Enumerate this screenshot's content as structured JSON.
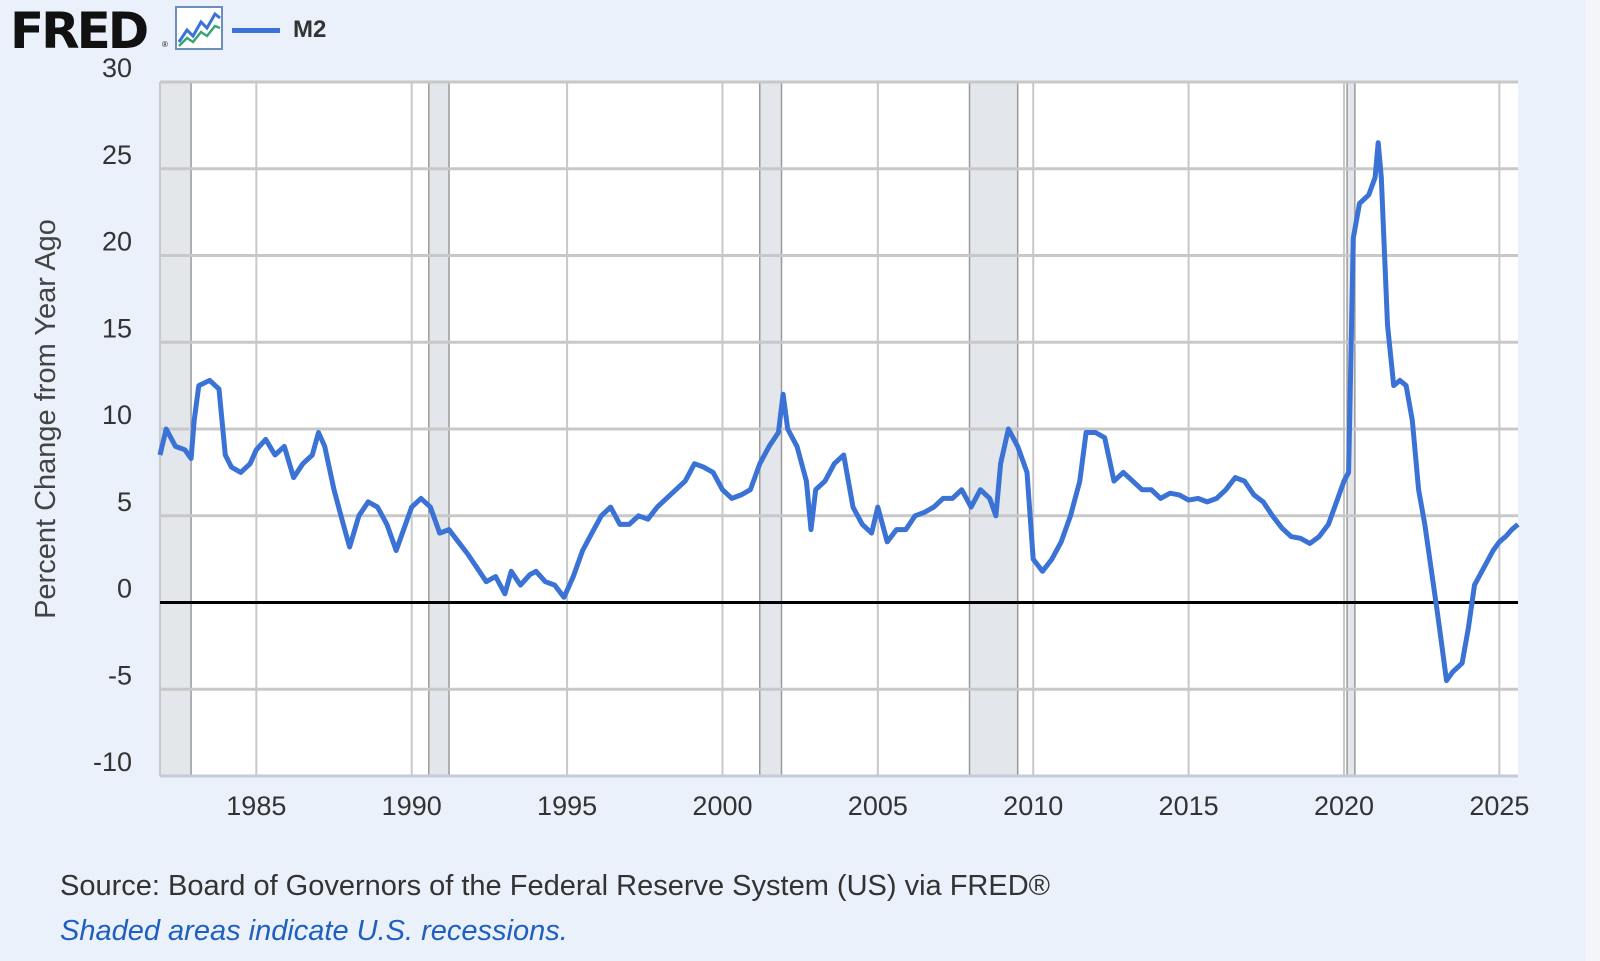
{
  "header": {
    "logo_text": "FRED",
    "logo_mark": "®",
    "icon": "line-chart-icon",
    "legend_label": "M2"
  },
  "colors": {
    "series": "#3a72d6",
    "recession_shade": "#e3e6ea",
    "grid": "#c8c8c8",
    "zero_line": "#000000",
    "background": "#eaf1fa",
    "plot_background": "#ffffff",
    "note_text": "#1f5fbf"
  },
  "footer": {
    "source": "Source: Board of Governors of the Federal Reserve System (US) via FRED®",
    "note": "Shaded areas indicate U.S. recessions."
  },
  "chart_data": {
    "type": "line",
    "title": "",
    "xlabel": "",
    "ylabel": "Percent Change from Year Ago",
    "xlim": [
      1981.9,
      2025.6
    ],
    "ylim": [
      -10,
      30
    ],
    "yticks": [
      -10,
      -5,
      0,
      5,
      10,
      15,
      20,
      25,
      30
    ],
    "ytick_labels": [
      "-10",
      "-5",
      "0",
      "5",
      "10",
      "15",
      "20",
      "25",
      "30"
    ],
    "xticks": [
      1985,
      1990,
      1995,
      2000,
      2005,
      2010,
      2015,
      2020,
      2025
    ],
    "xtick_labels": [
      "1985",
      "1990",
      "1995",
      "2000",
      "2005",
      "2010",
      "2015",
      "2020",
      "2025"
    ],
    "grid": true,
    "legend": "top-left",
    "recessions": [
      [
        1981.9,
        1982.9
      ],
      [
        1990.55,
        1991.2
      ],
      [
        2001.2,
        2001.9
      ],
      [
        2007.95,
        2009.5
      ],
      [
        2020.1,
        2020.35
      ]
    ],
    "series": [
      {
        "name": "M2",
        "x": [
          1981.9,
          1982.1,
          1982.4,
          1982.7,
          1982.9,
          1983.0,
          1983.15,
          1983.5,
          1983.8,
          1984.0,
          1984.2,
          1984.5,
          1984.8,
          1985.0,
          1985.3,
          1985.6,
          1985.9,
          1986.2,
          1986.5,
          1986.8,
          1987.0,
          1987.2,
          1987.5,
          1987.8,
          1988.0,
          1988.3,
          1988.6,
          1988.9,
          1989.2,
          1989.5,
          1989.8,
          1990.0,
          1990.3,
          1990.6,
          1990.9,
          1991.2,
          1991.5,
          1991.8,
          1992.1,
          1992.4,
          1992.7,
          1993.0,
          1993.2,
          1993.5,
          1993.8,
          1994.0,
          1994.3,
          1994.6,
          1994.9,
          1995.2,
          1995.5,
          1995.8,
          1996.1,
          1996.4,
          1996.7,
          1997.0,
          1997.3,
          1997.6,
          1997.9,
          1998.2,
          1998.5,
          1998.8,
          1999.1,
          1999.4,
          1999.7,
          2000.0,
          2000.3,
          2000.6,
          2000.9,
          2001.2,
          2001.5,
          2001.8,
          2001.95,
          2002.1,
          2002.4,
          2002.7,
          2002.85,
          2003.0,
          2003.3,
          2003.6,
          2003.9,
          2004.2,
          2004.5,
          2004.8,
          2005.0,
          2005.3,
          2005.6,
          2005.9,
          2006.2,
          2006.5,
          2006.8,
          2007.1,
          2007.4,
          2007.7,
          2008.0,
          2008.3,
          2008.6,
          2008.8,
          2008.95,
          2009.2,
          2009.5,
          2009.8,
          2010.0,
          2010.3,
          2010.6,
          2010.9,
          2011.2,
          2011.5,
          2011.7,
          2012.0,
          2012.3,
          2012.6,
          2012.9,
          2013.2,
          2013.5,
          2013.8,
          2014.1,
          2014.4,
          2014.7,
          2015.0,
          2015.3,
          2015.6,
          2015.9,
          2016.2,
          2016.5,
          2016.8,
          2017.1,
          2017.4,
          2017.7,
          2018.0,
          2018.3,
          2018.6,
          2018.9,
          2019.2,
          2019.5,
          2019.8,
          2020.0,
          2020.15,
          2020.3,
          2020.5,
          2020.8,
          2021.0,
          2021.1,
          2021.2,
          2021.4,
          2021.6,
          2021.8,
          2022.0,
          2022.2,
          2022.4,
          2022.6,
          2022.8,
          2023.0,
          2023.15,
          2023.3,
          2023.5,
          2023.8,
          2024.0,
          2024.2,
          2024.5,
          2024.8,
          2025.0,
          2025.2,
          2025.4,
          2025.6
        ],
        "values": [
          8.5,
          10.0,
          9.0,
          8.8,
          8.3,
          10.5,
          12.5,
          12.8,
          12.3,
          8.5,
          7.8,
          7.5,
          8.0,
          8.8,
          9.4,
          8.5,
          9.0,
          7.2,
          8.0,
          8.5,
          9.8,
          9.0,
          6.5,
          4.5,
          3.2,
          5.0,
          5.8,
          5.5,
          4.5,
          3.0,
          4.5,
          5.5,
          6.0,
          5.5,
          4.0,
          4.2,
          3.5,
          2.8,
          2.0,
          1.2,
          1.5,
          0.5,
          1.8,
          1.0,
          1.6,
          1.8,
          1.2,
          1.0,
          0.3,
          1.5,
          3.0,
          4.0,
          5.0,
          5.5,
          4.5,
          4.5,
          5.0,
          4.8,
          5.5,
          6.0,
          6.5,
          7.0,
          8.0,
          7.8,
          7.5,
          6.5,
          6.0,
          6.2,
          6.5,
          8.0,
          9.0,
          9.8,
          12.0,
          10.0,
          9.0,
          7.0,
          4.2,
          6.5,
          7.0,
          8.0,
          8.5,
          5.5,
          4.5,
          4.0,
          5.5,
          3.5,
          4.2,
          4.2,
          5.0,
          5.2,
          5.5,
          6.0,
          6.0,
          6.5,
          5.5,
          6.5,
          6.0,
          5.0,
          8.0,
          10.0,
          9.0,
          7.5,
          2.5,
          1.8,
          2.5,
          3.5,
          5.0,
          7.0,
          9.8,
          9.8,
          9.5,
          7.0,
          7.5,
          7.0,
          6.5,
          6.5,
          6.0,
          6.3,
          6.2,
          5.9,
          6.0,
          5.8,
          6.0,
          6.5,
          7.2,
          7.0,
          6.2,
          5.8,
          5.0,
          4.3,
          3.8,
          3.7,
          3.4,
          3.8,
          4.5,
          6.0,
          7.0,
          7.5,
          21.0,
          23.0,
          23.5,
          24.5,
          26.5,
          24.5,
          16.0,
          12.5,
          12.8,
          12.5,
          10.5,
          6.5,
          4.5,
          2.0,
          -0.5,
          -2.5,
          -4.5,
          -4.0,
          -3.5,
          -1.5,
          1.0,
          2.0,
          3.0,
          3.5,
          3.8,
          4.2,
          4.5
        ]
      }
    ]
  }
}
